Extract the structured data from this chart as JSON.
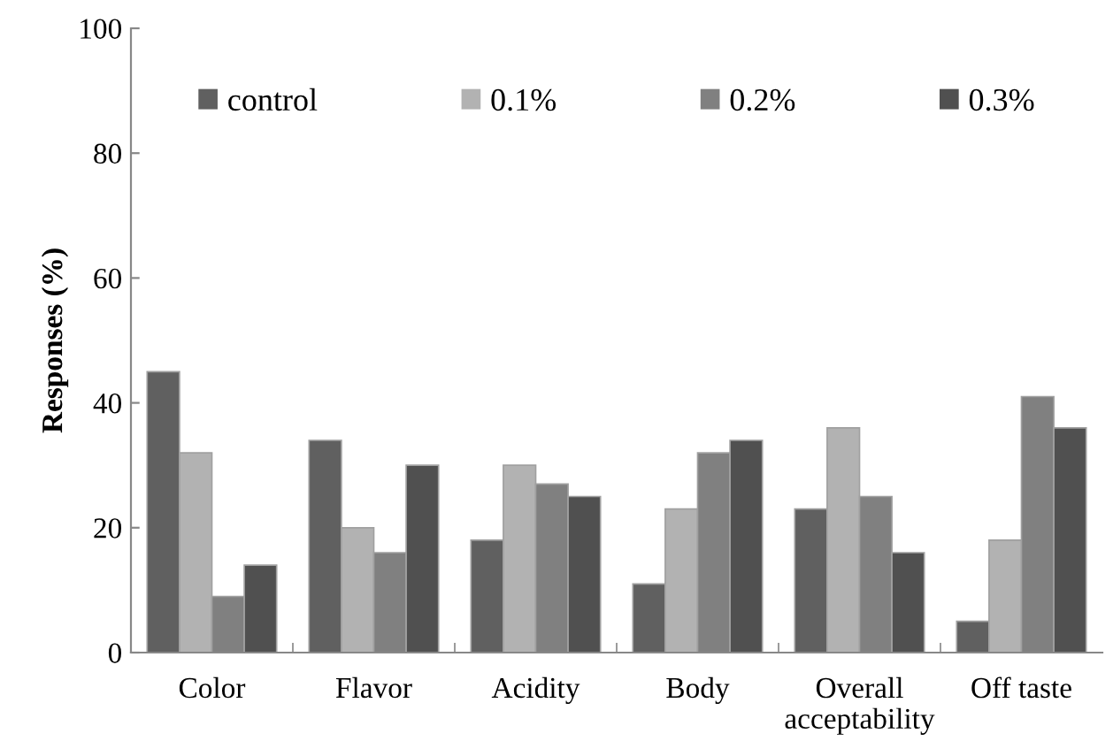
{
  "chart_data": {
    "type": "bar",
    "ylabel": "Responses (%)",
    "categories": [
      "Color",
      "Flavor",
      "Acidity",
      "Body",
      "Overall\nacceptability",
      "Off taste"
    ],
    "series": [
      {
        "name": "control",
        "color": "#606060",
        "values": [
          45,
          34,
          18,
          11,
          23,
          5
        ]
      },
      {
        "name": "0.1%",
        "color": "#b2b2b2",
        "values": [
          32,
          20,
          30,
          23,
          36,
          18
        ]
      },
      {
        "name": "0.2%",
        "color": "#808080",
        "values": [
          9,
          16,
          27,
          32,
          25,
          41
        ]
      },
      {
        "name": "0.3%",
        "color": "#505050",
        "values": [
          14,
          30,
          25,
          34,
          16,
          36
        ]
      }
    ],
    "ylim": [
      0,
      100
    ],
    "yticks": [
      0,
      20,
      40,
      60,
      80,
      100
    ],
    "grid": false,
    "legend": "top"
  }
}
